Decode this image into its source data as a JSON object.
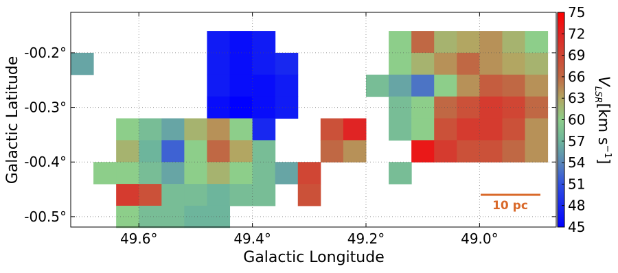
{
  "chart_data": {
    "type": "heatmap",
    "xlabel": "Galactic Longitude",
    "ylabel": "Galactic Latitude",
    "xlim": [
      49.72,
      48.865
    ],
    "ylim": [
      -0.519,
      -0.126
    ],
    "xticks": [
      {
        "value": 49.6,
        "label": "49.6°"
      },
      {
        "value": 49.4,
        "label": "49.4°"
      },
      {
        "value": 49.2,
        "label": "49.2°"
      },
      {
        "value": 49.0,
        "label": "49.0°"
      }
    ],
    "yticks": [
      {
        "value": -0.2,
        "label": "-00.2°"
      },
      {
        "value": -0.3,
        "label": "-00.3°"
      },
      {
        "value": -0.4,
        "label": "-00.4°"
      },
      {
        "value": -0.5,
        "label": "-00.5°"
      }
    ],
    "grid": true,
    "x": [
      49.7,
      49.66,
      49.62,
      49.58,
      49.54,
      49.5,
      49.46,
      49.42,
      49.38,
      49.34,
      49.3,
      49.26,
      49.22,
      49.18,
      49.14,
      49.1,
      49.06,
      49.02,
      48.98,
      48.94,
      48.9
    ],
    "y": [
      -0.14,
      -0.18,
      -0.22,
      -0.26,
      -0.3,
      -0.34,
      -0.38,
      -0.42,
      -0.46,
      -0.5
    ],
    "values": [
      [
        null,
        null,
        null,
        null,
        null,
        null,
        null,
        null,
        null,
        null,
        null,
        null,
        null,
        null,
        null,
        null,
        null,
        null,
        null,
        null,
        null
      ],
      [
        null,
        null,
        null,
        null,
        null,
        null,
        47,
        46,
        47,
        null,
        null,
        null,
        null,
        null,
        60,
        66,
        62,
        63,
        64,
        62,
        60
      ],
      [
        56,
        null,
        null,
        null,
        null,
        null,
        47,
        46,
        47,
        48,
        null,
        null,
        null,
        null,
        60,
        62,
        64,
        66,
        64,
        63,
        62
      ],
      [
        null,
        null,
        null,
        null,
        null,
        null,
        47,
        46,
        46,
        47,
        null,
        null,
        null,
        58,
        56,
        53,
        60,
        64,
        67,
        66,
        64
      ],
      [
        null,
        null,
        null,
        null,
        null,
        null,
        46,
        45,
        46,
        47,
        null,
        null,
        null,
        null,
        58,
        60,
        66,
        68,
        70,
        69,
        66
      ],
      [
        null,
        null,
        60,
        58,
        56,
        62,
        64,
        60,
        48,
        null,
        null,
        68,
        72,
        null,
        58,
        60,
        68,
        70,
        70,
        68,
        64
      ],
      [
        null,
        null,
        62,
        57,
        52,
        60,
        66,
        63,
        58,
        null,
        null,
        66,
        64,
        null,
        null,
        73,
        70,
        68,
        68,
        66,
        64
      ],
      [
        null,
        60,
        60,
        58,
        56,
        60,
        62,
        60,
        58,
        56,
        69,
        null,
        null,
        null,
        58,
        null,
        null,
        null,
        null,
        null,
        null
      ],
      [
        null,
        null,
        70,
        68,
        58,
        58,
        57,
        58,
        58,
        null,
        68,
        null,
        null,
        null,
        null,
        null,
        null,
        null,
        null,
        null,
        null
      ],
      [
        null,
        null,
        60,
        58,
        58,
        57,
        57,
        null,
        null,
        null,
        null,
        null,
        null,
        null,
        null,
        null,
        null,
        null,
        null,
        null,
        null
      ]
    ],
    "clim": [
      45,
      75
    ],
    "cticks": [
      45,
      48,
      51,
      54,
      57,
      60,
      63,
      66,
      69,
      72,
      75
    ],
    "colorbar_label": {
      "symbol": "V",
      "subscript": "LSR",
      "unit": "[km s",
      "exponent": "−1",
      "close": "]"
    },
    "annotation": "10 pc"
  }
}
